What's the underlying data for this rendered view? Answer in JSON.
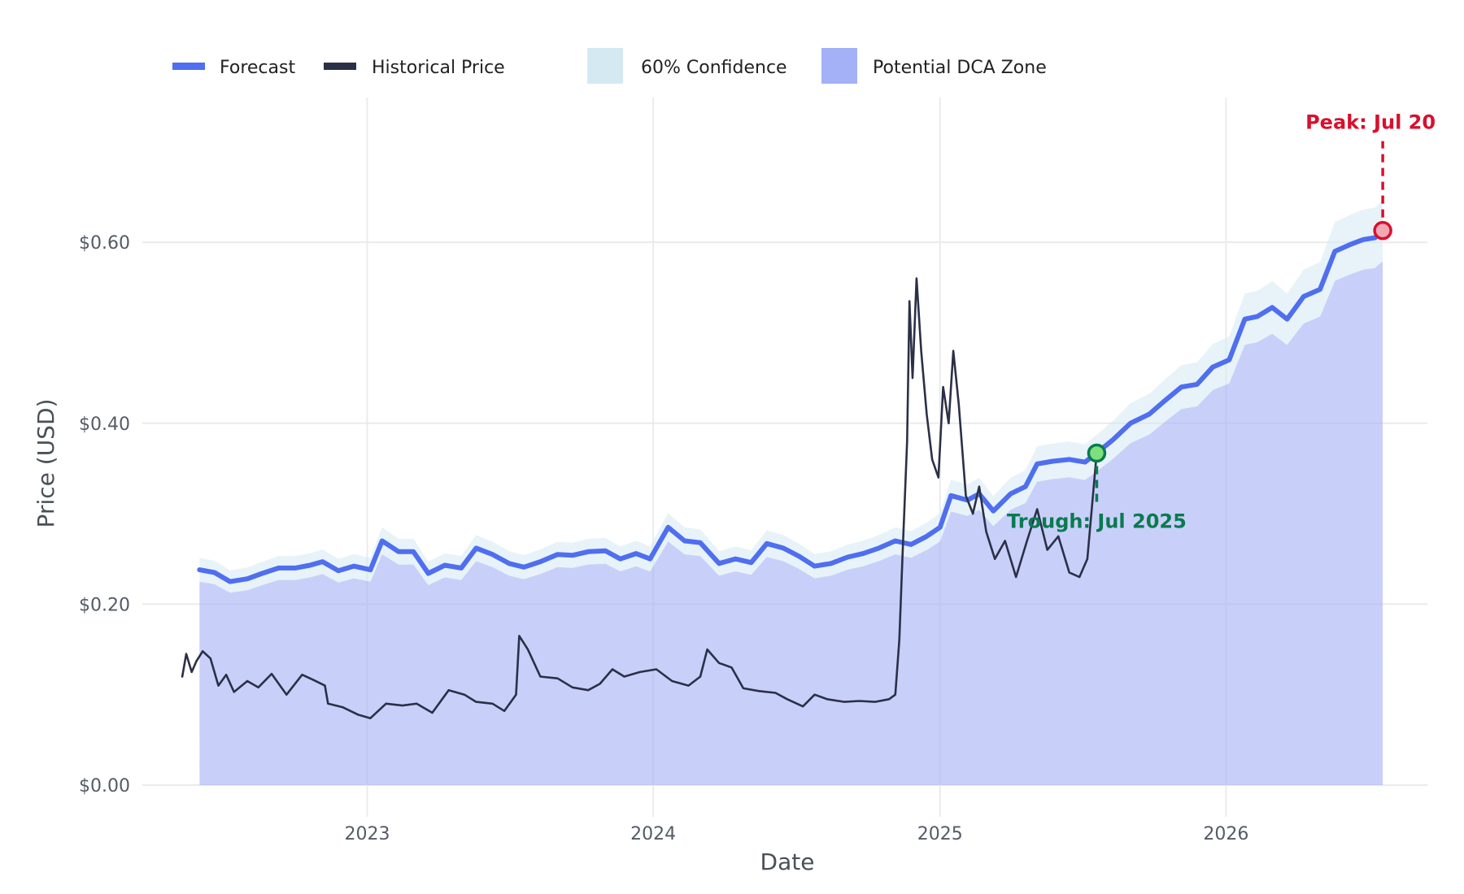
{
  "chart_data": {
    "type": "line",
    "xlabel": "Date",
    "ylabel": "Price (USD)",
    "x_tick_labels": [
      "2023",
      "2024",
      "2025",
      "2026"
    ],
    "x_ticks": [
      "2023-01-01",
      "2024-01-01",
      "2025-01-01",
      "2026-01-01"
    ],
    "y_tick_labels": [
      "$0.00",
      "$0.20",
      "$0.40",
      "$0.60"
    ],
    "y_ticks": [
      0,
      0.2,
      0.4,
      0.6
    ],
    "xlim": [
      "2022-03-20",
      "2026-09-15"
    ],
    "ylim": [
      -0.035,
      0.76
    ],
    "grid": true,
    "legend_position": "top-left",
    "legend": [
      {
        "label": "Forecast",
        "kind": "line",
        "color": "#4f6ef0"
      },
      {
        "label": "Historical Price",
        "kind": "line",
        "color": "#2b3047"
      },
      {
        "label": "60% Confidence",
        "kind": "area",
        "color": "#d4e9f2"
      },
      {
        "label": "Potential DCA Zone",
        "kind": "area",
        "color": "#a4b1f7"
      }
    ],
    "series": [
      {
        "name": "Forecast",
        "color": "#4f6ef0",
        "points": [
          [
            "2022-06-01",
            0.238
          ],
          [
            "2022-06-20",
            0.235
          ],
          [
            "2022-07-10",
            0.225
          ],
          [
            "2022-08-01",
            0.228
          ],
          [
            "2022-08-20",
            0.234
          ],
          [
            "2022-09-10",
            0.24
          ],
          [
            "2022-10-01",
            0.24
          ],
          [
            "2022-10-20",
            0.243
          ],
          [
            "2022-11-05",
            0.247
          ],
          [
            "2022-11-25",
            0.237
          ],
          [
            "2022-12-15",
            0.242
          ],
          [
            "2023-01-05",
            0.238
          ],
          [
            "2023-01-20",
            0.27
          ],
          [
            "2023-02-10",
            0.258
          ],
          [
            "2023-03-01",
            0.258
          ],
          [
            "2023-03-20",
            0.234
          ],
          [
            "2023-04-10",
            0.243
          ],
          [
            "2023-05-01",
            0.24
          ],
          [
            "2023-05-20",
            0.262
          ],
          [
            "2023-06-10",
            0.255
          ],
          [
            "2023-07-01",
            0.245
          ],
          [
            "2023-07-20",
            0.241
          ],
          [
            "2023-08-10",
            0.247
          ],
          [
            "2023-09-01",
            0.255
          ],
          [
            "2023-09-20",
            0.254
          ],
          [
            "2023-10-10",
            0.258
          ],
          [
            "2023-11-01",
            0.259
          ],
          [
            "2023-11-20",
            0.25
          ],
          [
            "2023-12-10",
            0.256
          ],
          [
            "2023-12-28",
            0.25
          ],
          [
            "2024-01-20",
            0.285
          ],
          [
            "2024-02-10",
            0.27
          ],
          [
            "2024-03-01",
            0.268
          ],
          [
            "2024-03-25",
            0.245
          ],
          [
            "2024-04-15",
            0.25
          ],
          [
            "2024-05-05",
            0.246
          ],
          [
            "2024-05-25",
            0.267
          ],
          [
            "2024-06-15",
            0.262
          ],
          [
            "2024-07-05",
            0.253
          ],
          [
            "2024-07-25",
            0.242
          ],
          [
            "2024-08-15",
            0.245
          ],
          [
            "2024-09-05",
            0.252
          ],
          [
            "2024-09-25",
            0.256
          ],
          [
            "2024-10-15",
            0.262
          ],
          [
            "2024-11-05",
            0.27
          ],
          [
            "2024-11-25",
            0.266
          ],
          [
            "2024-12-15",
            0.275
          ],
          [
            "2025-01-01",
            0.285
          ],
          [
            "2025-01-15",
            0.32
          ],
          [
            "2025-02-05",
            0.315
          ],
          [
            "2025-02-20",
            0.322
          ],
          [
            "2025-03-10",
            0.303
          ],
          [
            "2025-04-01",
            0.322
          ],
          [
            "2025-04-20",
            0.33
          ],
          [
            "2025-05-05",
            0.355
          ],
          [
            "2025-05-25",
            0.358
          ],
          [
            "2025-06-15",
            0.36
          ],
          [
            "2025-07-05",
            0.357
          ],
          [
            "2025-07-20",
            0.367
          ],
          [
            "2025-08-10",
            0.382
          ],
          [
            "2025-09-01",
            0.4
          ],
          [
            "2025-09-25",
            0.41
          ],
          [
            "2025-10-15",
            0.425
          ],
          [
            "2025-11-05",
            0.44
          ],
          [
            "2025-11-25",
            0.443
          ],
          [
            "2025-12-15",
            0.462
          ],
          [
            "2026-01-05",
            0.47
          ],
          [
            "2026-01-25",
            0.515
          ],
          [
            "2026-02-10",
            0.518
          ],
          [
            "2026-03-01",
            0.528
          ],
          [
            "2026-03-20",
            0.515
          ],
          [
            "2026-04-10",
            0.54
          ],
          [
            "2026-05-01",
            0.548
          ],
          [
            "2026-05-20",
            0.59
          ],
          [
            "2026-06-10",
            0.598
          ],
          [
            "2026-06-25",
            0.603
          ],
          [
            "2026-07-10",
            0.605
          ],
          [
            "2026-07-20",
            0.613
          ]
        ]
      },
      {
        "name": "Historical Price",
        "color": "#2b3047",
        "points": [
          [
            "2022-05-10",
            0.12
          ],
          [
            "2022-05-15",
            0.145
          ],
          [
            "2022-05-22",
            0.125
          ],
          [
            "2022-05-28",
            0.137
          ],
          [
            "2022-06-05",
            0.148
          ],
          [
            "2022-06-15",
            0.14
          ],
          [
            "2022-06-25",
            0.11
          ],
          [
            "2022-07-05",
            0.122
          ],
          [
            "2022-07-15",
            0.103
          ],
          [
            "2022-08-01",
            0.115
          ],
          [
            "2022-08-15",
            0.108
          ],
          [
            "2022-09-01",
            0.123
          ],
          [
            "2022-09-20",
            0.1
          ],
          [
            "2022-10-10",
            0.122
          ],
          [
            "2022-10-25",
            0.116
          ],
          [
            "2022-11-08",
            0.11
          ],
          [
            "2022-11-12",
            0.09
          ],
          [
            "2022-12-01",
            0.086
          ],
          [
            "2022-12-20",
            0.078
          ],
          [
            "2023-01-05",
            0.074
          ],
          [
            "2023-01-25",
            0.09
          ],
          [
            "2023-02-15",
            0.088
          ],
          [
            "2023-03-05",
            0.09
          ],
          [
            "2023-03-25",
            0.08
          ],
          [
            "2023-04-15",
            0.105
          ],
          [
            "2023-05-05",
            0.1
          ],
          [
            "2023-05-20",
            0.092
          ],
          [
            "2023-06-10",
            0.09
          ],
          [
            "2023-06-25",
            0.082
          ],
          [
            "2023-07-10",
            0.1
          ],
          [
            "2023-07-14",
            0.165
          ],
          [
            "2023-07-25",
            0.15
          ],
          [
            "2023-08-10",
            0.12
          ],
          [
            "2023-09-01",
            0.118
          ],
          [
            "2023-09-20",
            0.108
          ],
          [
            "2023-10-10",
            0.105
          ],
          [
            "2023-10-25",
            0.112
          ],
          [
            "2023-11-10",
            0.128
          ],
          [
            "2023-11-25",
            0.12
          ],
          [
            "2023-12-15",
            0.125
          ],
          [
            "2024-01-05",
            0.128
          ],
          [
            "2024-01-25",
            0.115
          ],
          [
            "2024-02-15",
            0.11
          ],
          [
            "2024-03-01",
            0.12
          ],
          [
            "2024-03-10",
            0.15
          ],
          [
            "2024-03-25",
            0.135
          ],
          [
            "2024-04-10",
            0.13
          ],
          [
            "2024-04-25",
            0.107
          ],
          [
            "2024-05-15",
            0.104
          ],
          [
            "2024-06-05",
            0.102
          ],
          [
            "2024-06-20",
            0.095
          ],
          [
            "2024-07-10",
            0.087
          ],
          [
            "2024-07-25",
            0.1
          ],
          [
            "2024-08-10",
            0.095
          ],
          [
            "2024-09-01",
            0.092
          ],
          [
            "2024-09-20",
            0.093
          ],
          [
            "2024-10-10",
            0.092
          ],
          [
            "2024-10-28",
            0.095
          ],
          [
            "2024-11-05",
            0.1
          ],
          [
            "2024-11-10",
            0.16
          ],
          [
            "2024-11-14",
            0.25
          ],
          [
            "2024-11-20",
            0.38
          ],
          [
            "2024-11-23",
            0.535
          ],
          [
            "2024-11-27",
            0.45
          ],
          [
            "2024-12-02",
            0.56
          ],
          [
            "2024-12-08",
            0.48
          ],
          [
            "2024-12-15",
            0.41
          ],
          [
            "2024-12-22",
            0.36
          ],
          [
            "2024-12-30",
            0.34
          ],
          [
            "2025-01-05",
            0.44
          ],
          [
            "2025-01-12",
            0.4
          ],
          [
            "2025-01-18",
            0.48
          ],
          [
            "2025-01-25",
            0.42
          ],
          [
            "2025-02-03",
            0.32
          ],
          [
            "2025-02-12",
            0.3
          ],
          [
            "2025-02-20",
            0.33
          ],
          [
            "2025-03-01",
            0.28
          ],
          [
            "2025-03-12",
            0.25
          ],
          [
            "2025-03-25",
            0.27
          ],
          [
            "2025-04-08",
            0.23
          ],
          [
            "2025-04-22",
            0.27
          ],
          [
            "2025-05-05",
            0.305
          ],
          [
            "2025-05-18",
            0.26
          ],
          [
            "2025-06-01",
            0.275
          ],
          [
            "2025-06-15",
            0.235
          ],
          [
            "2025-06-28",
            0.23
          ],
          [
            "2025-07-08",
            0.25
          ],
          [
            "2025-07-20",
            0.367
          ]
        ]
      }
    ],
    "confidence_band": {
      "label": "60% Confidence",
      "color": "#d4e9f2",
      "half_width_fraction": 0.055
    },
    "dca_zone": {
      "label": "Potential DCA Zone",
      "color": "#a4b1f7",
      "lower": 0,
      "follows": "Forecast lower confidence bound"
    },
    "annotations": [
      {
        "name": "peak",
        "text": "Peak: Jul 20",
        "date": "2026-07-20",
        "value": 0.613,
        "color": "#d8102e",
        "marker_fill": "#f2a7b4"
      },
      {
        "name": "trough",
        "text": "Trough: Jul 2025",
        "date": "2025-07-20",
        "value": 0.367,
        "color": "#0a7a4f",
        "marker_fill": "#7ee07a"
      }
    ]
  }
}
